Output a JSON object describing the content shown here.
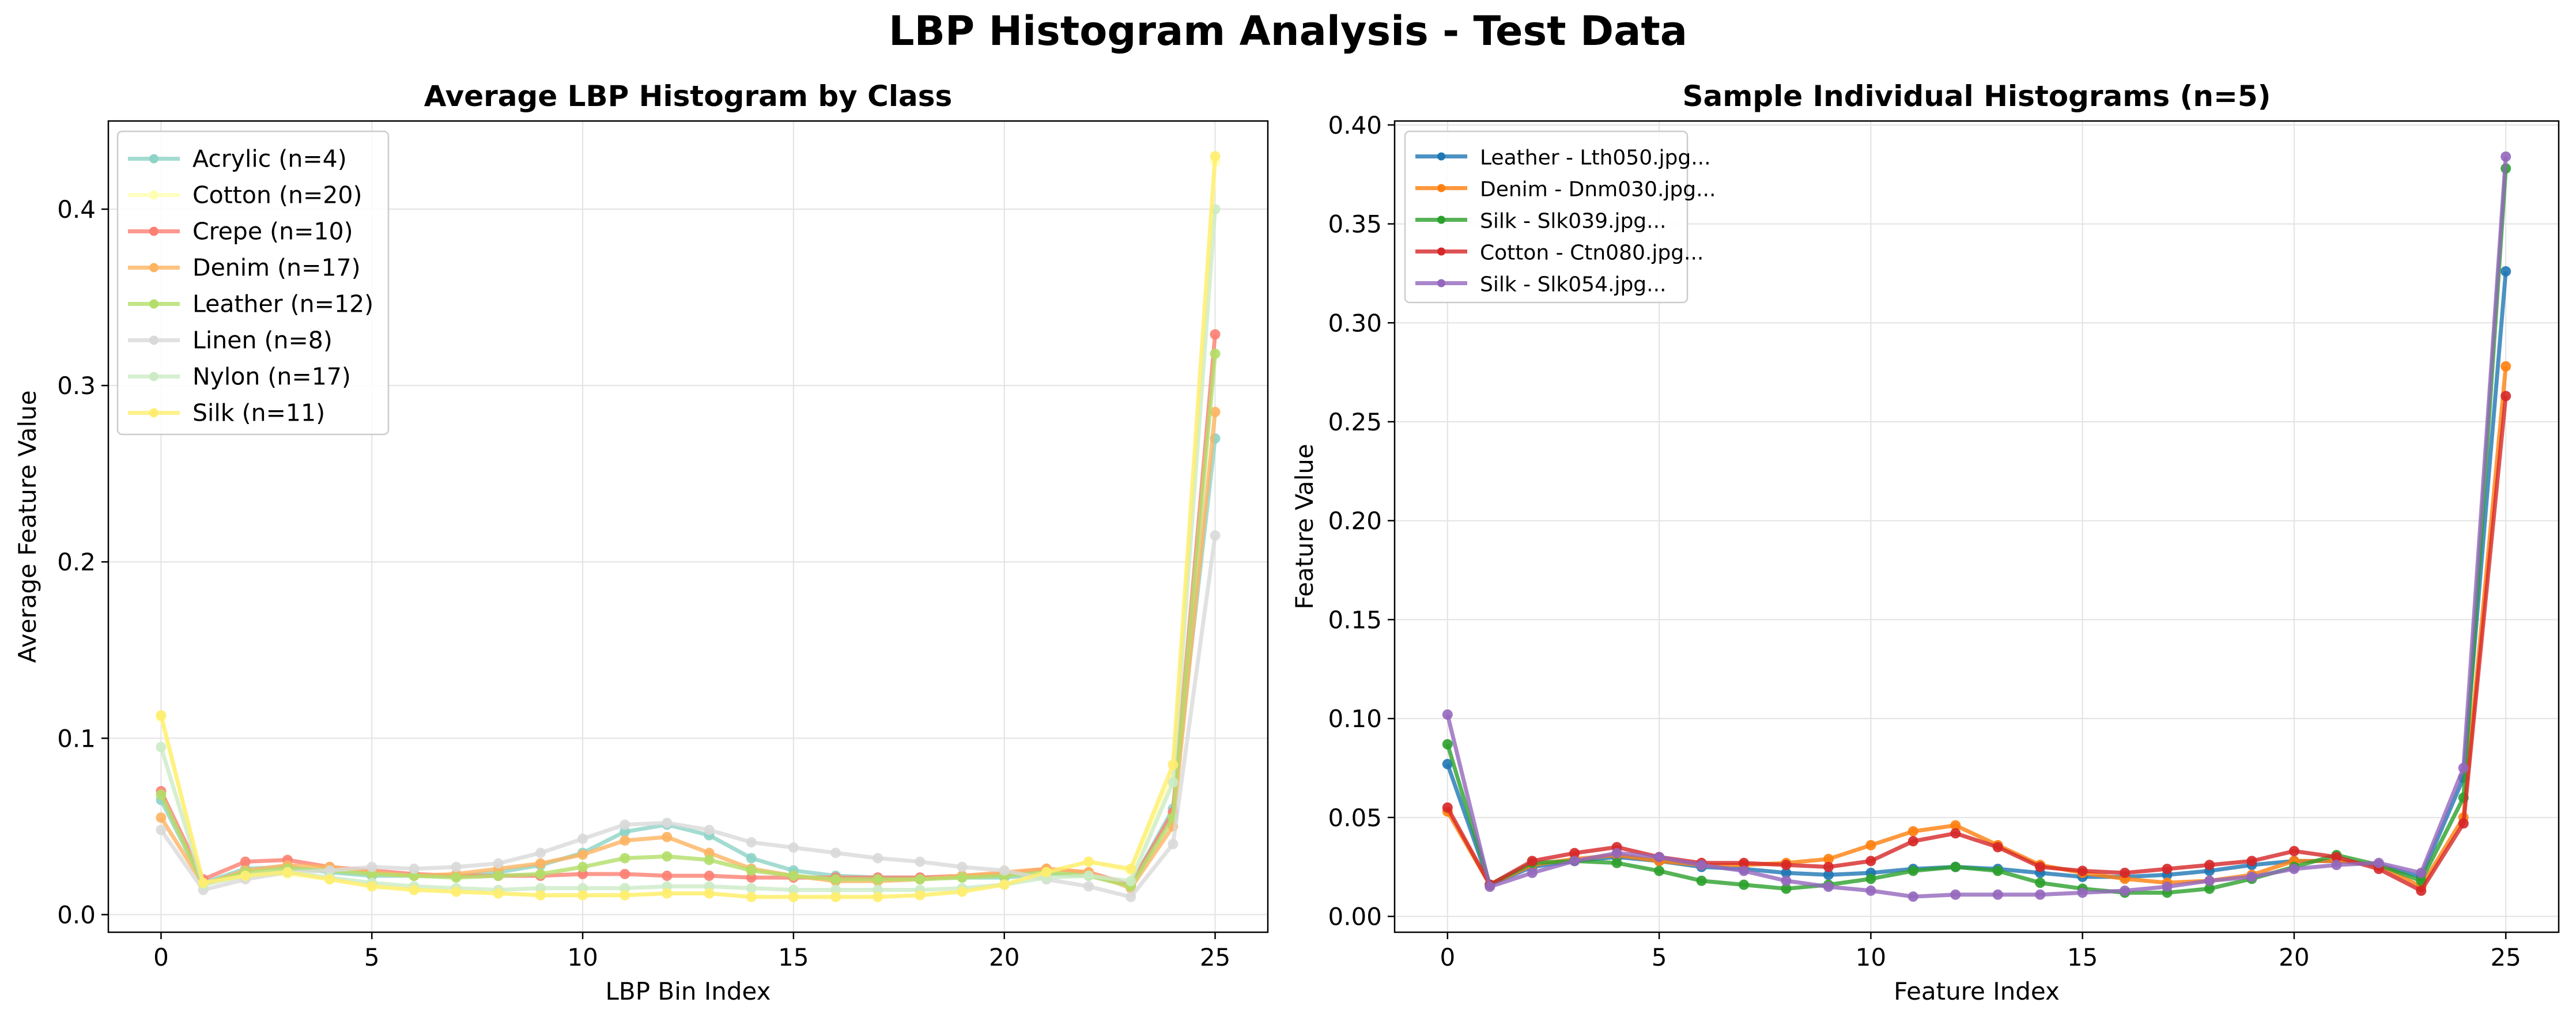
{
  "figure": {
    "title": "LBP Histogram Analysis - Test Data"
  },
  "chart_data": [
    {
      "type": "line",
      "title": "Average LBP Histogram by Class",
      "xlabel": "LBP Bin Index",
      "ylabel": "Average Feature Value",
      "xlim": [
        -1.25,
        26.25
      ],
      "ylim": [
        -0.01,
        0.45
      ],
      "xticks": [
        0,
        5,
        10,
        15,
        20,
        25
      ],
      "xtick_labels": [
        "0",
        "5",
        "10",
        "15",
        "20",
        "25"
      ],
      "yticks": [
        0.0,
        0.1,
        0.2,
        0.3,
        0.4
      ],
      "ytick_labels": [
        "0.0",
        "0.1",
        "0.2",
        "0.3",
        "0.4"
      ],
      "grid": true,
      "legend_position": "top-left",
      "x": [
        0,
        1,
        2,
        3,
        4,
        5,
        6,
        7,
        8,
        9,
        10,
        11,
        12,
        13,
        14,
        15,
        16,
        17,
        18,
        19,
        20,
        21,
        22,
        23,
        24,
        25
      ],
      "series": [
        {
          "name": "Acrylic (n=4)",
          "color": "#8dd3c7",
          "values": [
            0.065,
            0.018,
            0.026,
            0.027,
            0.024,
            0.022,
            0.022,
            0.022,
            0.024,
            0.028,
            0.035,
            0.047,
            0.051,
            0.045,
            0.032,
            0.025,
            0.022,
            0.021,
            0.021,
            0.021,
            0.021,
            0.023,
            0.022,
            0.017,
            0.06,
            0.27
          ]
        },
        {
          "name": "Cotton (n=20)",
          "color": "#ffffb3",
          "values": [
            0.112,
            0.018,
            0.022,
            0.023,
            0.02,
            0.016,
            0.014,
            0.013,
            0.012,
            0.011,
            0.011,
            0.011,
            0.012,
            0.012,
            0.01,
            0.01,
            0.01,
            0.01,
            0.011,
            0.013,
            0.017,
            0.024,
            0.03,
            0.025,
            0.08,
            0.427
          ]
        },
        {
          "name": "Crepe (n=10)",
          "color": "#fb8072",
          "values": [
            0.07,
            0.02,
            0.03,
            0.031,
            0.027,
            0.025,
            0.023,
            0.022,
            0.022,
            0.022,
            0.023,
            0.023,
            0.022,
            0.022,
            0.021,
            0.021,
            0.021,
            0.021,
            0.021,
            0.022,
            0.023,
            0.026,
            0.024,
            0.017,
            0.058,
            0.329
          ]
        },
        {
          "name": "Denim (n=17)",
          "color": "#fdb462",
          "values": [
            0.055,
            0.017,
            0.025,
            0.028,
            0.027,
            0.024,
            0.022,
            0.023,
            0.026,
            0.029,
            0.034,
            0.042,
            0.044,
            0.035,
            0.026,
            0.022,
            0.019,
            0.019,
            0.02,
            0.022,
            0.024,
            0.026,
            0.024,
            0.015,
            0.05,
            0.285
          ]
        },
        {
          "name": "Leather (n=12)",
          "color": "#b3de69",
          "values": [
            0.068,
            0.017,
            0.024,
            0.026,
            0.025,
            0.023,
            0.022,
            0.021,
            0.022,
            0.023,
            0.027,
            0.032,
            0.033,
            0.031,
            0.025,
            0.022,
            0.02,
            0.02,
            0.02,
            0.021,
            0.022,
            0.024,
            0.022,
            0.016,
            0.055,
            0.318
          ]
        },
        {
          "name": "Linen (n=8)",
          "color": "#d9d9d9",
          "values": [
            0.048,
            0.014,
            0.02,
            0.024,
            0.025,
            0.027,
            0.026,
            0.027,
            0.029,
            0.035,
            0.043,
            0.051,
            0.052,
            0.048,
            0.041,
            0.038,
            0.035,
            0.032,
            0.03,
            0.027,
            0.025,
            0.02,
            0.016,
            0.01,
            0.04,
            0.215
          ]
        },
        {
          "name": "Nylon (n=17)",
          "color": "#ccebc5",
          "values": [
            0.095,
            0.017,
            0.022,
            0.024,
            0.021,
            0.018,
            0.016,
            0.015,
            0.014,
            0.015,
            0.015,
            0.015,
            0.016,
            0.016,
            0.015,
            0.014,
            0.014,
            0.014,
            0.014,
            0.015,
            0.017,
            0.021,
            0.022,
            0.019,
            0.075,
            0.4
          ]
        },
        {
          "name": "Silk (n=11)",
          "color": "#ffed6f",
          "values": [
            0.113,
            0.018,
            0.022,
            0.024,
            0.02,
            0.016,
            0.014,
            0.013,
            0.012,
            0.011,
            0.011,
            0.011,
            0.012,
            0.012,
            0.01,
            0.01,
            0.01,
            0.01,
            0.011,
            0.013,
            0.017,
            0.024,
            0.03,
            0.026,
            0.085,
            0.43
          ]
        }
      ]
    },
    {
      "type": "line",
      "title": "Sample Individual Histograms (n=5)",
      "xlabel": "Feature Index",
      "ylabel": "Feature Value",
      "xlim": [
        -1.25,
        26.25
      ],
      "ylim": [
        -0.008,
        0.402
      ],
      "xticks": [
        0,
        5,
        10,
        15,
        20,
        25
      ],
      "xtick_labels": [
        "0",
        "5",
        "10",
        "15",
        "20",
        "25"
      ],
      "yticks": [
        0.0,
        0.05,
        0.1,
        0.15,
        0.2,
        0.25,
        0.3,
        0.35,
        0.4
      ],
      "ytick_labels": [
        "0.00",
        "0.05",
        "0.10",
        "0.15",
        "0.20",
        "0.25",
        "0.30",
        "0.35",
        "0.40"
      ],
      "grid": true,
      "legend_position": "top-left",
      "x": [
        0,
        1,
        2,
        3,
        4,
        5,
        6,
        7,
        8,
        9,
        10,
        11,
        12,
        13,
        14,
        15,
        16,
        17,
        18,
        19,
        20,
        21,
        22,
        23,
        24,
        25
      ],
      "series": [
        {
          "name": "Leather - Lth050.jpg...",
          "color": "#1f77b4",
          "values": [
            0.077,
            0.016,
            0.025,
            0.028,
            0.03,
            0.028,
            0.025,
            0.024,
            0.022,
            0.021,
            0.022,
            0.024,
            0.025,
            0.024,
            0.022,
            0.02,
            0.02,
            0.021,
            0.023,
            0.026,
            0.028,
            0.028,
            0.026,
            0.02,
            0.07,
            0.326
          ]
        },
        {
          "name": "Denim - Dnm030.jpg...",
          "color": "#ff7f0e",
          "values": [
            0.053,
            0.016,
            0.026,
            0.029,
            0.031,
            0.028,
            0.026,
            0.026,
            0.027,
            0.029,
            0.036,
            0.043,
            0.046,
            0.036,
            0.026,
            0.022,
            0.019,
            0.017,
            0.018,
            0.021,
            0.028,
            0.028,
            0.026,
            0.015,
            0.05,
            0.278
          ]
        },
        {
          "name": "Silk - Slk039.jpg...",
          "color": "#2ca02c",
          "values": [
            0.087,
            0.016,
            0.027,
            0.028,
            0.027,
            0.023,
            0.018,
            0.016,
            0.014,
            0.016,
            0.019,
            0.023,
            0.025,
            0.023,
            0.017,
            0.014,
            0.012,
            0.012,
            0.014,
            0.019,
            0.025,
            0.031,
            0.026,
            0.018,
            0.06,
            0.378
          ]
        },
        {
          "name": "Cotton - Ctn080.jpg...",
          "color": "#d62728",
          "values": [
            0.055,
            0.016,
            0.028,
            0.032,
            0.035,
            0.03,
            0.027,
            0.027,
            0.026,
            0.025,
            0.028,
            0.038,
            0.042,
            0.035,
            0.025,
            0.023,
            0.022,
            0.024,
            0.026,
            0.028,
            0.033,
            0.03,
            0.024,
            0.013,
            0.047,
            0.263
          ]
        },
        {
          "name": "Silk - Slk054.jpg...",
          "color": "#9467bd",
          "values": [
            0.102,
            0.015,
            0.022,
            0.028,
            0.032,
            0.03,
            0.026,
            0.023,
            0.018,
            0.015,
            0.013,
            0.01,
            0.011,
            0.011,
            0.011,
            0.012,
            0.013,
            0.015,
            0.018,
            0.02,
            0.024,
            0.026,
            0.027,
            0.022,
            0.075,
            0.384
          ]
        }
      ]
    }
  ]
}
